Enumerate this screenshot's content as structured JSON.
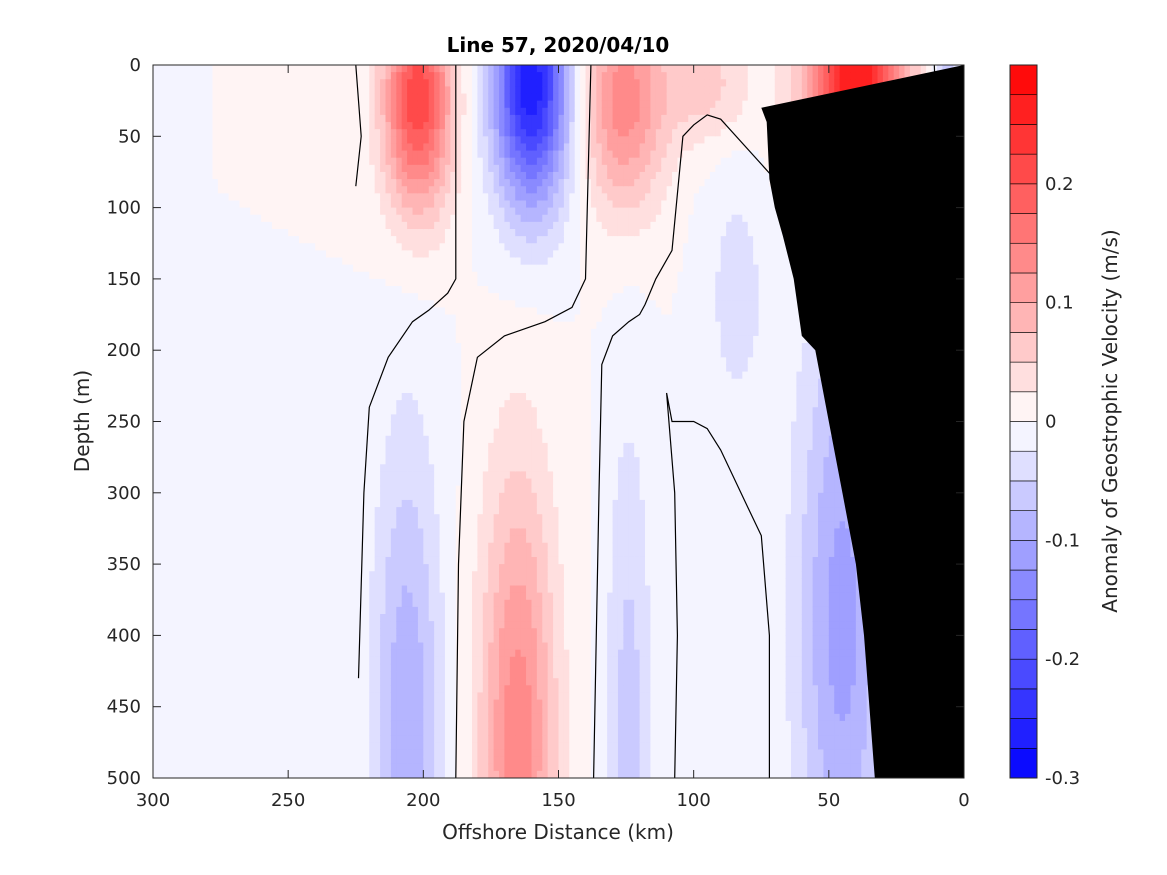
{
  "chart_data": {
    "type": "contour",
    "title": "Line 57, 2020/04/10",
    "xlabel": "Offshore Distance (km)",
    "ylabel": "Depth (m)",
    "xlim": [
      300,
      0
    ],
    "ylim": [
      0,
      500
    ],
    "x_reversed": true,
    "y_reversed": true,
    "xticks": [
      300,
      250,
      200,
      150,
      100,
      50,
      0
    ],
    "yticks": [
      0,
      50,
      100,
      150,
      200,
      250,
      300,
      350,
      400,
      450,
      500
    ],
    "xtick_labels": [
      "300",
      "250",
      "200",
      "150",
      "100",
      "50",
      "0"
    ],
    "ytick_labels": [
      "0",
      "50",
      "100",
      "150",
      "200",
      "250",
      "300",
      "350",
      "400",
      "450",
      "500"
    ],
    "colorbar": {
      "label": "Anomaly of Geostrophic Velocity (m/s)",
      "range": [
        -0.3,
        0.3
      ],
      "step": 0.025,
      "tick_values": [
        -0.3,
        -0.2,
        -0.1,
        0,
        0.1,
        0.2
      ],
      "tick_labels": [
        "-0.3",
        "-0.2",
        "-0.1",
        "0",
        "0.1",
        "0.2"
      ],
      "negative_color": "#0000ff",
      "positive_color": "#ff0000",
      "zero_color": "#ffffff"
    },
    "features": [
      {
        "name": "Positive core near 200 km",
        "x": 202,
        "y": 25,
        "value": 0.2
      },
      {
        "name": "Negative core near 160 km",
        "x": 160,
        "y": 20,
        "value": -0.25
      },
      {
        "name": "Positive core near 125 km",
        "x": 125,
        "y": 30,
        "value": 0.12
      },
      {
        "name": "Positive core near 90 km",
        "x": 90,
        "y": 40,
        "value": 0.08
      },
      {
        "name": "Positive core near 40 km",
        "x": 40,
        "y": 15,
        "value": 0.25
      },
      {
        "name": "Negative core near 8 km",
        "x": 8,
        "y": 10,
        "value": -0.06
      },
      {
        "name": "Deep negative lobe near 205 km",
        "x": 205,
        "y": 470,
        "value": -0.09
      },
      {
        "name": "Deep positive lobe near 165 km",
        "x": 165,
        "y": 470,
        "value": 0.12
      },
      {
        "name": "Deep negative lobe near 125 km",
        "x": 125,
        "y": 450,
        "value": -0.05
      },
      {
        "name": "Weak negative lobe near 85 km",
        "x": 85,
        "y": 160,
        "value": -0.03
      },
      {
        "name": "Deep negative lobe near 45 km",
        "x": 45,
        "y": 380,
        "value": -0.1
      }
    ],
    "zero_contours": [
      [
        [
          225,
          0
        ],
        [
          223,
          50
        ],
        [
          225,
          85
        ]
      ],
      [
        [
          224,
          430
        ],
        [
          222,
          300
        ],
        [
          220,
          240
        ],
        [
          213,
          205
        ],
        [
          204,
          180
        ],
        [
          198,
          172
        ],
        [
          191,
          160
        ],
        [
          188,
          150
        ],
        [
          188,
          0
        ]
      ],
      [
        [
          188,
          500
        ],
        [
          187,
          350
        ],
        [
          185,
          250
        ],
        [
          180,
          205
        ],
        [
          170,
          190
        ],
        [
          155,
          180
        ],
        [
          145,
          170
        ],
        [
          140,
          150
        ],
        [
          138,
          0
        ]
      ],
      [
        [
          137,
          500
        ],
        [
          136,
          400
        ],
        [
          135,
          300
        ],
        [
          134,
          210
        ],
        [
          130,
          190
        ],
        [
          124,
          180
        ],
        [
          120,
          175
        ],
        [
          118,
          168
        ],
        [
          114,
          150
        ],
        [
          108,
          130
        ],
        [
          104,
          50
        ],
        [
          100,
          42
        ],
        [
          95,
          35
        ],
        [
          90,
          38
        ],
        [
          70,
          80
        ],
        [
          50,
          130
        ],
        [
          45,
          160
        ],
        [
          20,
          165
        ],
        [
          12,
          110
        ],
        [
          10,
          50
        ],
        [
          11,
          0
        ]
      ],
      [
        [
          107,
          500
        ],
        [
          106,
          400
        ],
        [
          107,
          300
        ],
        [
          110,
          230
        ],
        [
          108,
          250
        ],
        [
          100,
          250
        ],
        [
          95,
          255
        ],
        [
          90,
          270
        ],
        [
          80,
          310
        ],
        [
          75,
          330
        ],
        [
          72,
          400
        ],
        [
          72,
          500
        ]
      ]
    ],
    "bathymetry": [
      [
        33,
        500
      ],
      [
        37,
        400
      ],
      [
        40,
        350
      ],
      [
        45,
        300
      ],
      [
        50,
        250
      ],
      [
        55,
        200
      ],
      [
        60,
        190
      ],
      [
        63,
        150
      ],
      [
        67,
        120
      ],
      [
        70,
        100
      ],
      [
        72,
        80
      ],
      [
        73,
        40
      ],
      [
        75,
        30
      ]
    ]
  }
}
